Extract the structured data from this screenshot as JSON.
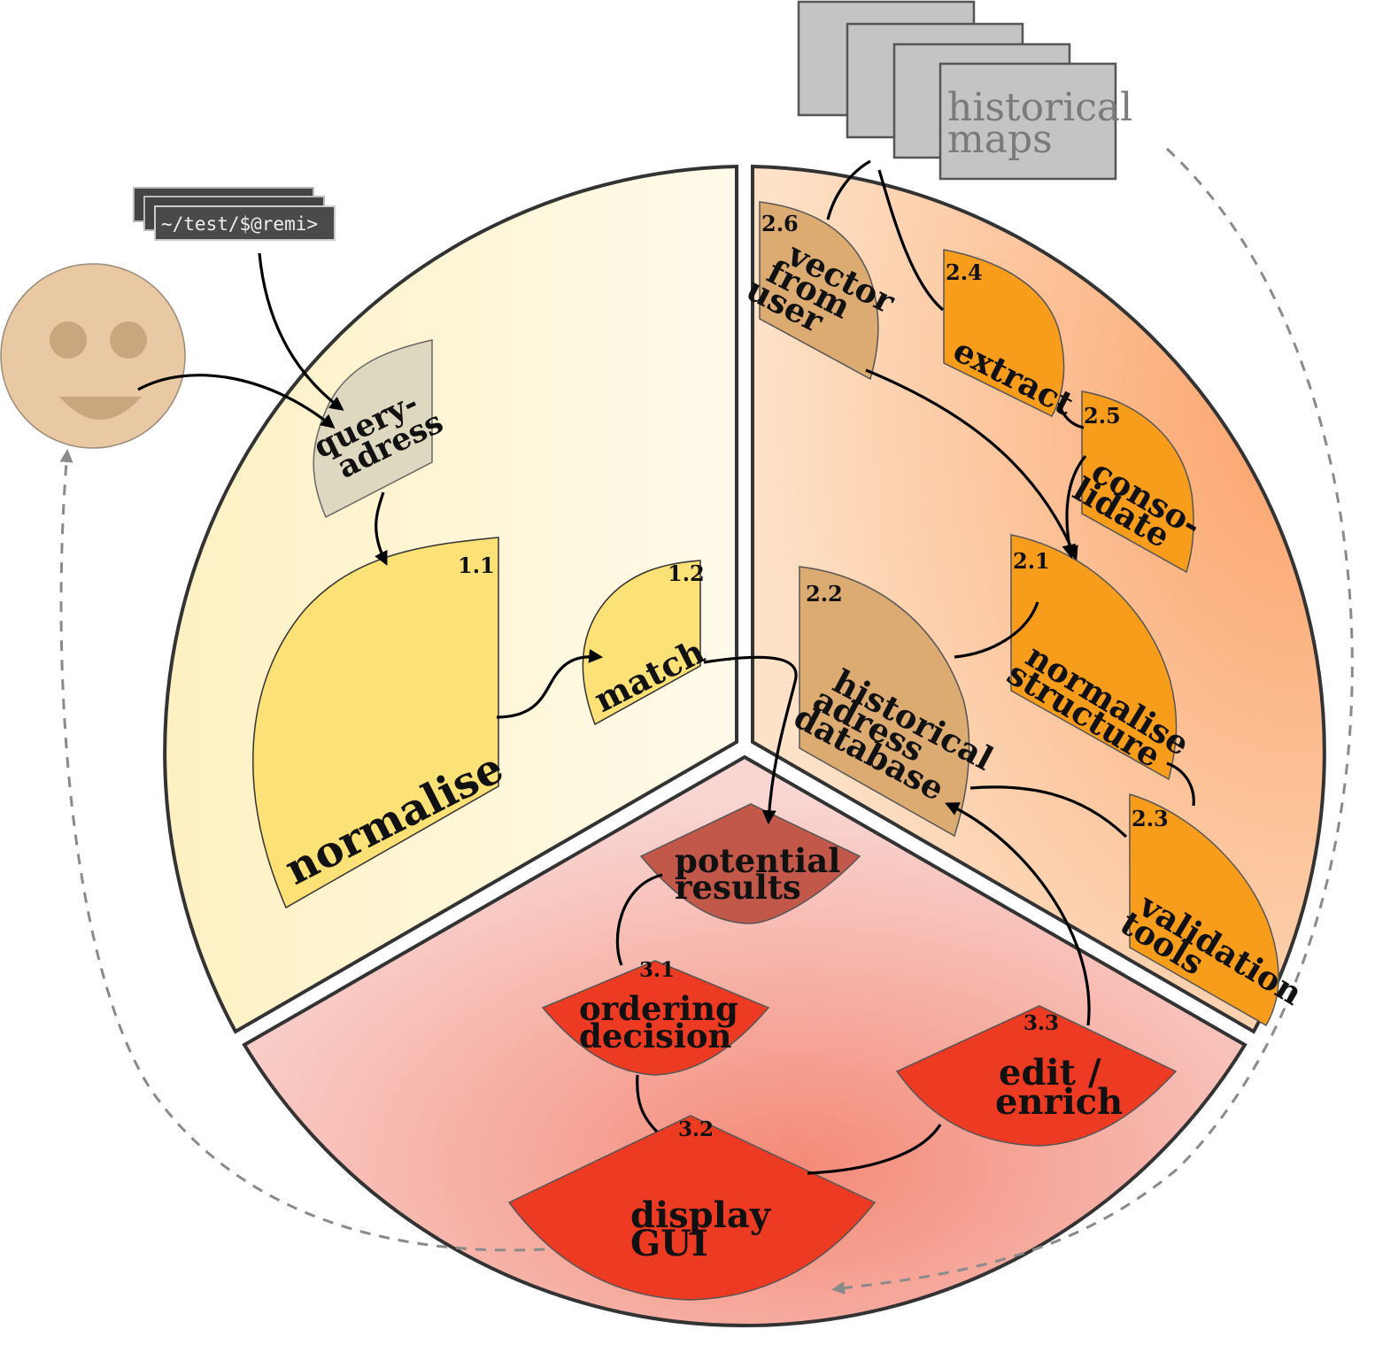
{
  "sectors": {
    "left": {
      "fill_from": "#fdf0c2",
      "fill_to": "#fffbea"
    },
    "right": {
      "fill_from": "#fde2c8",
      "fill_to": "#fca36a"
    },
    "bottom": {
      "fill_from": "#f9d6d2",
      "fill_to": "#f48a78"
    }
  },
  "terminal": {
    "prompt": "~/test/$@remi>"
  },
  "historical_maps": {
    "label_line1": "historical",
    "label_line2": "maps",
    "fill": "#c4c4c4"
  },
  "user": {
    "icon": "smiley-face-icon",
    "fill": "#e9c9a3"
  },
  "nodes": {
    "query_adress": {
      "line1": "query-",
      "line2": "adress",
      "fill": "#ded8c0"
    },
    "normalise": {
      "number": "1.1",
      "label": "normalise",
      "fill": "#fce176"
    },
    "match": {
      "number": "1.2",
      "label": "match",
      "fill": "#fce176"
    },
    "vector_from_user": {
      "number": "2.6",
      "line1": "vector",
      "line2": "from",
      "line3": "user",
      "fill": "#dbab72"
    },
    "extract": {
      "number": "2.4",
      "label": "extract",
      "fill": "#f89c1c"
    },
    "consolidate": {
      "number": "2.5",
      "line1": "conso-",
      "line2": "lidate",
      "fill": "#f89c1c"
    },
    "normalise_structure": {
      "number": "2.1",
      "line1": "normalise",
      "line2": "structure",
      "fill": "#f89c1c"
    },
    "historical_adress_database": {
      "number": "2.2",
      "line1": "historical",
      "line2": "adress",
      "line3": "database",
      "fill": "#dbab72"
    },
    "validation_tools": {
      "number": "2.3",
      "line1": "validation",
      "line2": "tools",
      "fill": "#f89c1c"
    },
    "potential_results": {
      "line1": "potential",
      "line2": "results",
      "fill": "#c2584a"
    },
    "ordering_decision": {
      "number": "3.1",
      "line1": "ordering",
      "line2": "decision",
      "fill": "#ec3b22"
    },
    "display_gui": {
      "number": "3.2",
      "line1": "display",
      "line2": "GUI",
      "fill": "#ec3b22"
    },
    "edit_enrich": {
      "number": "3.3",
      "line1": "edit /",
      "line2": "enrich",
      "fill": "#ec3b22"
    }
  }
}
